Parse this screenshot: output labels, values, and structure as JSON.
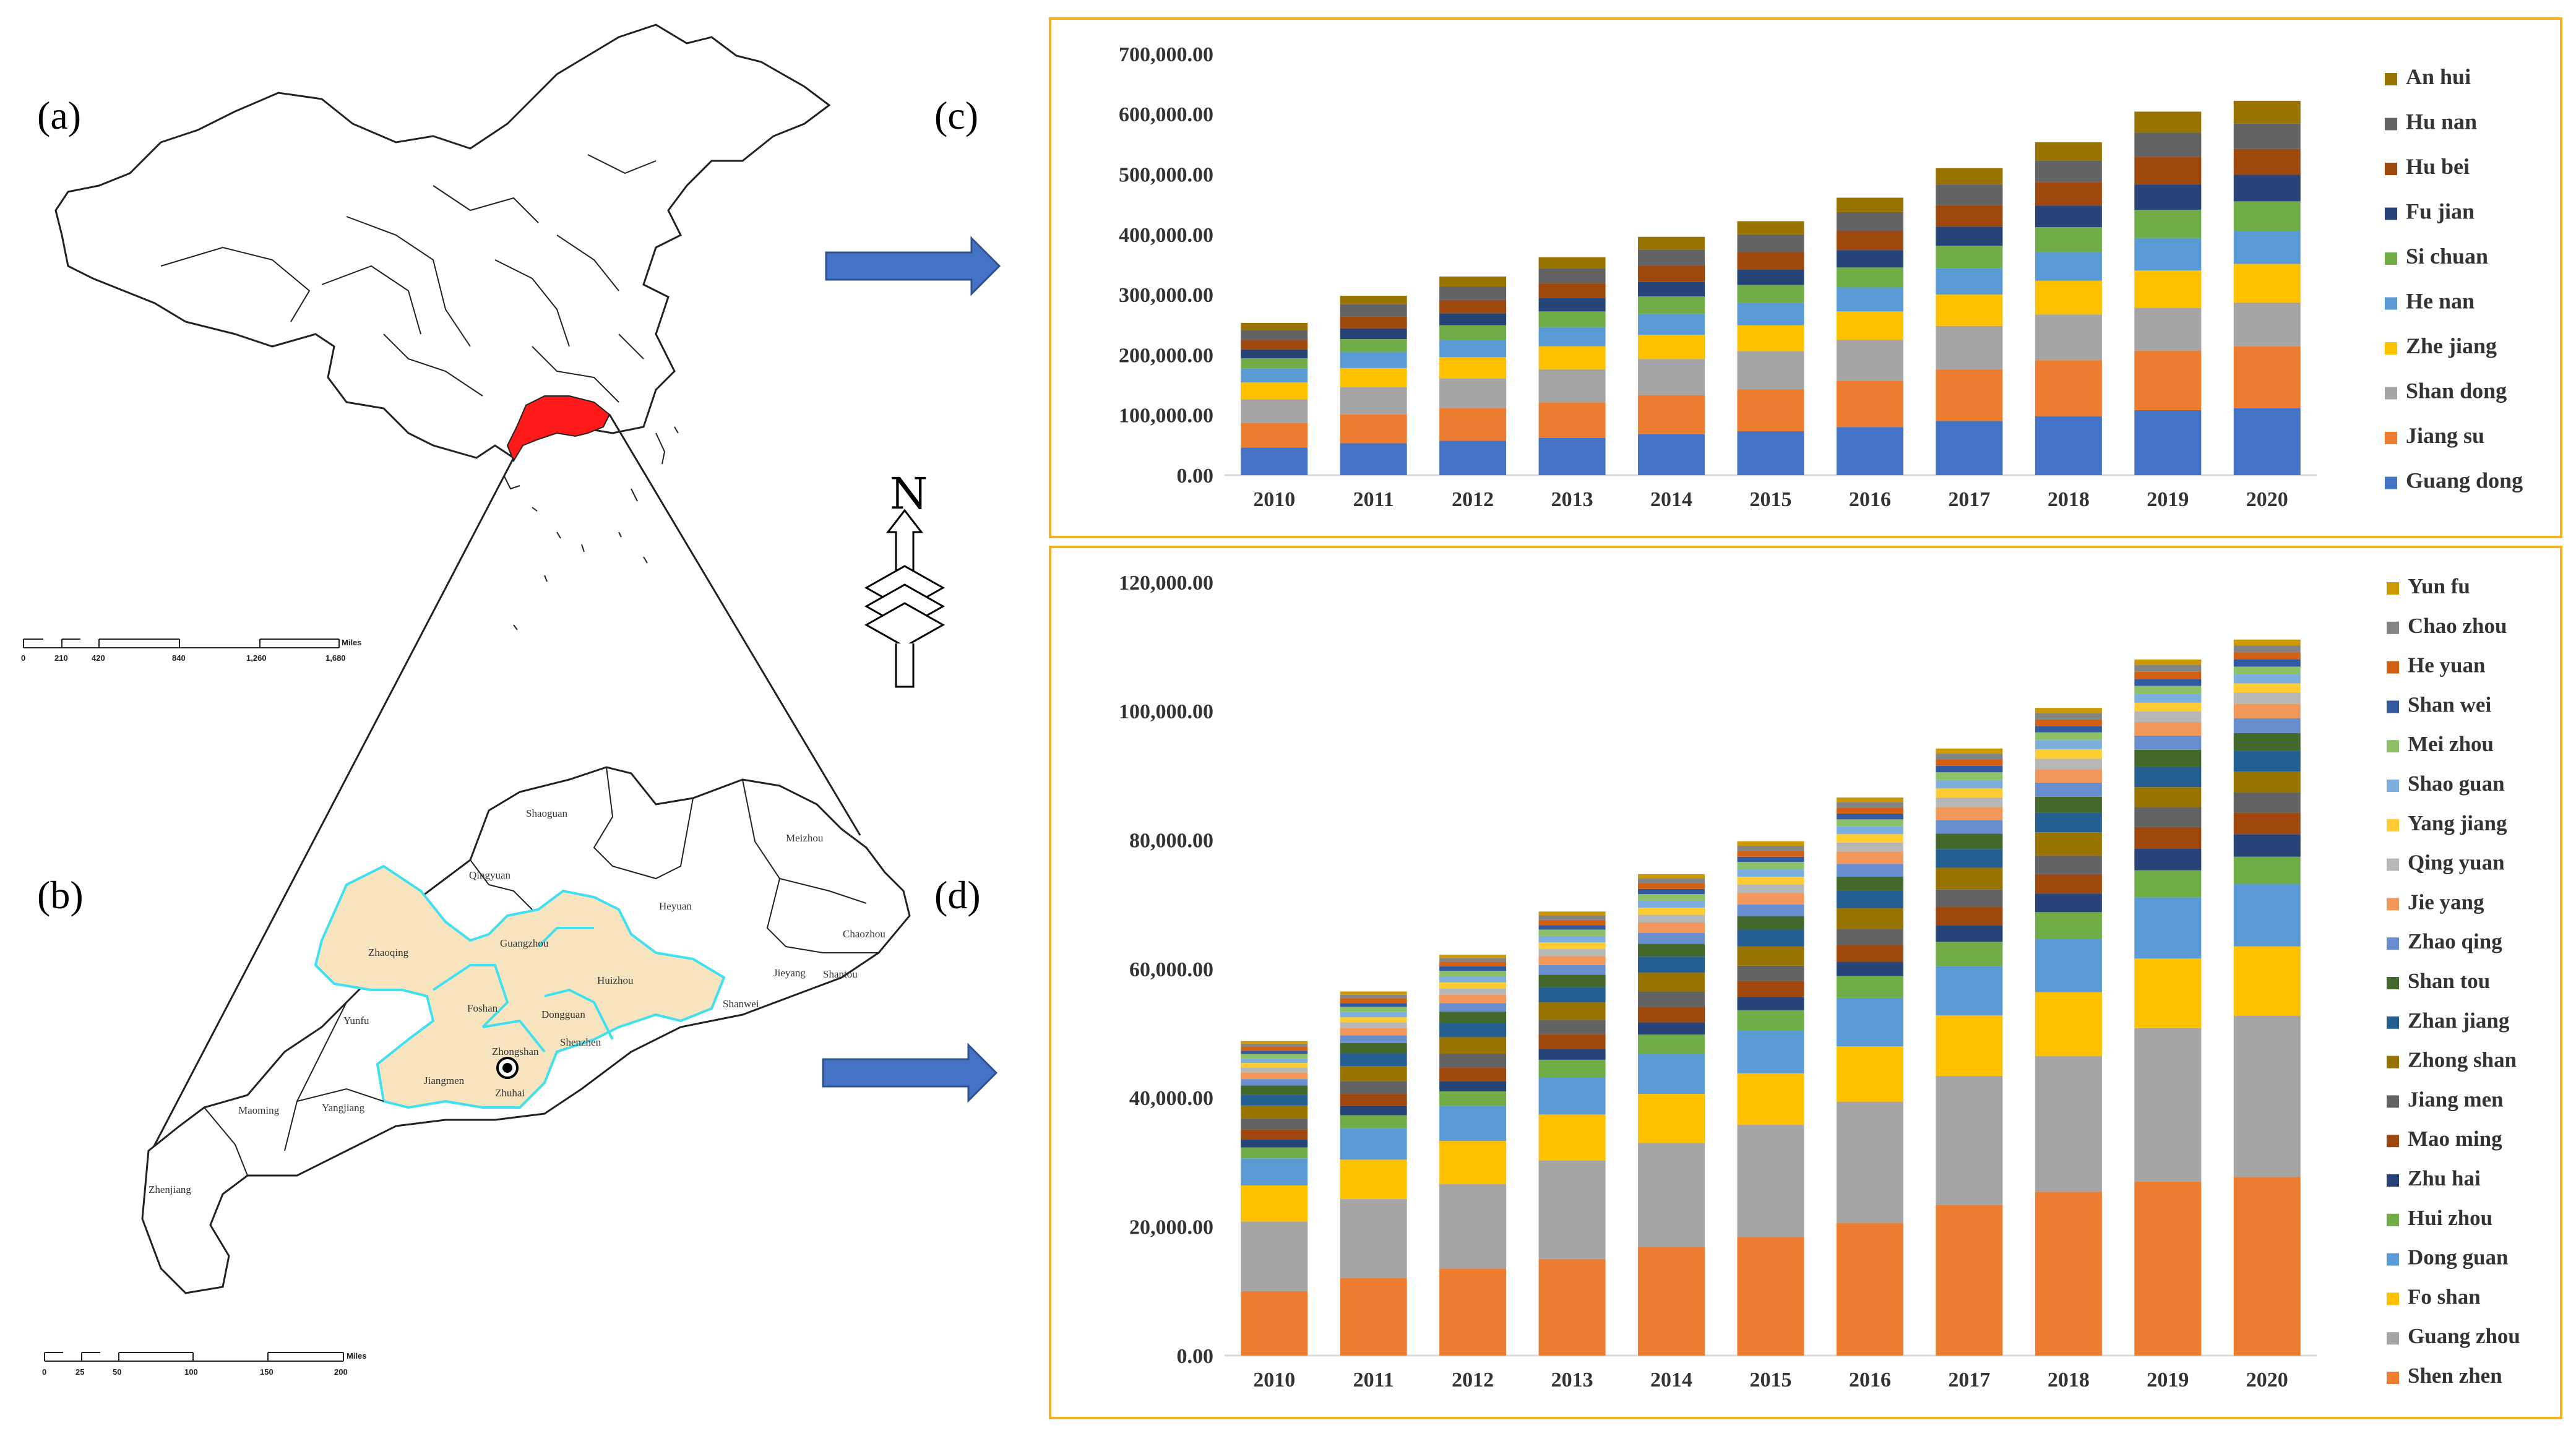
{
  "panel_labels": {
    "a": "(a)",
    "b": "(b)",
    "c": "(c)",
    "d": "(d)"
  },
  "north_label": "N",
  "scale_a": {
    "ticks": [
      "0",
      "210",
      "420",
      "840",
      "1,260",
      "1,680"
    ],
    "unit": "Miles"
  },
  "scale_b": {
    "ticks": [
      "0",
      "25",
      "50",
      "100",
      "150",
      "200"
    ],
    "unit": "Miles"
  },
  "cities": [
    "Shaoguan",
    "Qingyuan",
    "Heyuan",
    "Meizhou",
    "Zhaoqing",
    "Guangzhou",
    "Huizhou",
    "Chaozhou",
    "Jieyang",
    "Shantou",
    "Foshan",
    "Dongguan",
    "Yunfu",
    "Shenzhen",
    "Shanwei",
    "Jiangmen",
    "Zhongshan",
    "Zhuhai",
    "Maoming",
    "Yangjiang",
    "Zhenjiang"
  ],
  "chart_data": [
    {
      "type": "bar",
      "stacked": true,
      "title": "",
      "xlabel": "",
      "ylabel": "",
      "ylim": [
        0,
        700000
      ],
      "yticks": [
        "0.00",
        "100,000.00",
        "200,000.00",
        "300,000.00",
        "400,000.00",
        "500,000.00",
        "600,000.00",
        "700,000.00"
      ],
      "categories": [
        "2010",
        "2011",
        "2012",
        "2013",
        "2014",
        "2015",
        "2016",
        "2017",
        "2018",
        "2019",
        "2020"
      ],
      "legend_position": "right",
      "series": [
        {
          "name": "Guang dong",
          "color": "#4472c4",
          "values": [
            46000,
            53000,
            57000,
            62000,
            68000,
            73000,
            80000,
            90000,
            98000,
            108000,
            111000
          ]
        },
        {
          "name": "Jiang su",
          "color": "#ed7d31",
          "values": [
            41000,
            48000,
            54000,
            59000,
            65000,
            70000,
            77000,
            86000,
            93000,
            99000,
            103000
          ]
        },
        {
          "name": "Shan dong",
          "color": "#a5a5a5",
          "values": [
            39000,
            45000,
            50000,
            55000,
            60000,
            63000,
            68000,
            72000,
            76000,
            71000,
            73000
          ]
        },
        {
          "name": "Zhe jiang",
          "color": "#ffc000",
          "values": [
            28000,
            32000,
            35000,
            38000,
            40000,
            43000,
            47000,
            52000,
            56000,
            62000,
            64000
          ]
        },
        {
          "name": "He nan",
          "color": "#5b9bd5",
          "values": [
            23000,
            27000,
            29000,
            32000,
            35000,
            37000,
            40000,
            44000,
            48000,
            54000,
            55000
          ]
        },
        {
          "name": "Si chuan",
          "color": "#70ad47",
          "values": [
            17000,
            21000,
            24000,
            26000,
            29000,
            30000,
            33000,
            37000,
            41000,
            47000,
            49000
          ]
        },
        {
          "name": "Fu jian",
          "color": "#264478",
          "values": [
            15000,
            18000,
            20000,
            22000,
            24000,
            26000,
            29000,
            32000,
            36000,
            42000,
            44000
          ]
        },
        {
          "name": "Hu bei",
          "color": "#9e480e",
          "values": [
            16000,
            20000,
            22000,
            25000,
            27000,
            29000,
            32000,
            36000,
            39000,
            46000,
            43000
          ]
        },
        {
          "name": "Hu nan",
          "color": "#636363",
          "values": [
            16000,
            20000,
            22000,
            25000,
            27000,
            29000,
            31000,
            34000,
            36000,
            40000,
            42000
          ]
        },
        {
          "name": "An hui",
          "color": "#997300",
          "values": [
            12000,
            14000,
            17000,
            18000,
            21000,
            22000,
            24000,
            27000,
            30000,
            35000,
            38000
          ]
        }
      ]
    },
    {
      "type": "bar",
      "stacked": true,
      "title": "",
      "xlabel": "",
      "ylabel": "",
      "ylim": [
        0,
        120000
      ],
      "yticks": [
        "0.00",
        "20,000.00",
        "40,000.00",
        "60,000.00",
        "80,000.00",
        "100,000.00",
        "120,000.00"
      ],
      "categories": [
        "2010",
        "2011",
        "2012",
        "2013",
        "2014",
        "2015",
        "2016",
        "2017",
        "2018",
        "2019",
        "2020"
      ],
      "legend_position": "right",
      "series": [
        {
          "name": "Shen zhen",
          "color": "#ed7d31",
          "values": [
            10000,
            12000,
            13500,
            15000,
            16800,
            18400,
            20600,
            23400,
            25400,
            27000,
            27700
          ]
        },
        {
          "name": "Guang zhou",
          "color": "#a5a5a5",
          "values": [
            10800,
            12300,
            13100,
            15300,
            16200,
            17400,
            18800,
            20000,
            21100,
            23800,
            25000
          ]
        },
        {
          "name": "Fo shan",
          "color": "#ffc000",
          "values": [
            5600,
            6100,
            6700,
            7100,
            7600,
            8000,
            8600,
            9400,
            9900,
            10800,
            10800
          ]
        },
        {
          "name": "Dong guan",
          "color": "#5b9bd5",
          "values": [
            4200,
            4900,
            5400,
            5800,
            6200,
            6700,
            7500,
            7600,
            8300,
            9500,
            9700
          ]
        },
        {
          "name": "Hui zhou",
          "color": "#70ad47",
          "values": [
            1700,
            2000,
            2300,
            2700,
            3000,
            3100,
            3400,
            3800,
            4100,
            4200,
            4200
          ]
        },
        {
          "name": "Zhu hai",
          "color": "#264478",
          "values": [
            1200,
            1400,
            1600,
            1700,
            1900,
            2000,
            2200,
            2600,
            2900,
            3400,
            3500
          ]
        },
        {
          "name": "Mao ming",
          "color": "#9e480e",
          "values": [
            1600,
            1900,
            2100,
            2300,
            2400,
            2500,
            2600,
            2800,
            3000,
            3300,
            3300
          ]
        },
        {
          "name": "Jiang men",
          "color": "#636363",
          "values": [
            1700,
            2000,
            2100,
            2200,
            2400,
            2400,
            2500,
            2700,
            2900,
            3100,
            3200
          ]
        },
        {
          "name": "Zhong shan",
          "color": "#997300",
          "values": [
            2000,
            2300,
            2600,
            2700,
            2900,
            3000,
            3200,
            3400,
            3600,
            3100,
            3200
          ]
        },
        {
          "name": "Zhan jiang",
          "color": "#255e91",
          "values": [
            1700,
            2000,
            2200,
            2400,
            2500,
            2600,
            2700,
            2900,
            3000,
            3100,
            3200
          ]
        },
        {
          "name": "Shan tou",
          "color": "#43682b",
          "values": [
            1400,
            1600,
            1800,
            1900,
            2000,
            2100,
            2200,
            2400,
            2500,
            2700,
            2800
          ]
        },
        {
          "name": "Zhao qing",
          "color": "#698ed0",
          "values": [
            1000,
            1200,
            1300,
            1500,
            1700,
            1800,
            2000,
            2100,
            2200,
            2200,
            2300
          ]
        },
        {
          "name": "Jie yang",
          "color": "#f1975a",
          "values": [
            1000,
            1100,
            1300,
            1400,
            1600,
            1800,
            1900,
            2000,
            2100,
            2100,
            2200
          ]
        },
        {
          "name": "Qing yuan",
          "color": "#b7b7b7",
          "values": [
            800,
            900,
            1000,
            1100,
            1200,
            1300,
            1400,
            1500,
            1600,
            1700,
            1800
          ]
        },
        {
          "name": "Yang jiang",
          "color": "#ffcd33",
          "values": [
            700,
            800,
            900,
            1000,
            1100,
            1200,
            1300,
            1400,
            1500,
            1300,
            1400
          ]
        },
        {
          "name": "Shao guan",
          "color": "#7cafdd",
          "values": [
            700,
            800,
            900,
            1000,
            1100,
            1200,
            1200,
            1300,
            1400,
            1400,
            1400
          ]
        },
        {
          "name": "Mei zhou",
          "color": "#8cc168",
          "values": [
            700,
            800,
            900,
            1000,
            1000,
            1100,
            1100,
            1200,
            1200,
            1200,
            1200
          ]
        },
        {
          "name": "Shan wei",
          "color": "#335aa1",
          "values": [
            500,
            600,
            700,
            700,
            800,
            800,
            900,
            1000,
            1000,
            1100,
            1100
          ]
        },
        {
          "name": "He yuan",
          "color": "#d26012",
          "values": [
            600,
            700,
            700,
            800,
            900,
            900,
            900,
            1000,
            1000,
            1100,
            1100
          ]
        },
        {
          "name": "Chao zhou",
          "color": "#848484",
          "values": [
            500,
            600,
            600,
            700,
            800,
            800,
            900,
            900,
            1000,
            1100,
            1100
          ]
        },
        {
          "name": "Yun fu",
          "color": "#cc9a00",
          "values": [
            400,
            500,
            500,
            600,
            600,
            700,
            700,
            800,
            800,
            800,
            900
          ]
        }
      ]
    }
  ]
}
